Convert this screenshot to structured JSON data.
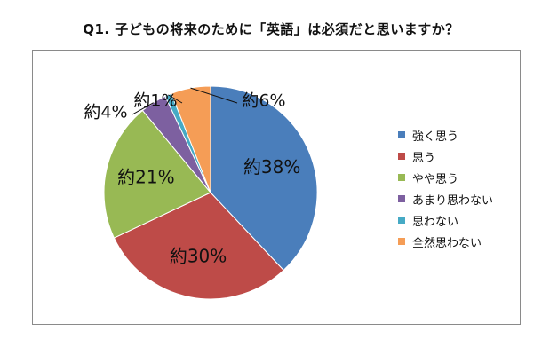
{
  "title": "Q1. 子どもの将来のために「英語」は必須だと思いますか？",
  "chart_data": {
    "type": "pie",
    "categories": [
      "強く思う",
      "思う",
      "やや思う",
      "あまり思わない",
      "思わない",
      "全然思わない"
    ],
    "values": [
      38,
      30,
      21,
      4,
      1,
      6
    ],
    "data_labels": [
      "約38%",
      "約30%",
      "約21%",
      "約4%",
      "約1%",
      "約6%"
    ],
    "colors": [
      "#4a7ebb",
      "#be4b48",
      "#98b954",
      "#7d60a0",
      "#46aac5",
      "#f59d56"
    ],
    "legend_position": "right"
  }
}
